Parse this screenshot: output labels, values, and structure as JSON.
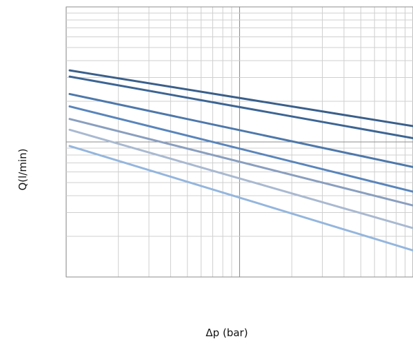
{
  "chart_data": {
    "type": "line",
    "xlabel": "Δp (bar)",
    "ylabel": "Q(l/min)",
    "x_scale": "log",
    "y_scale": "log",
    "grid": true,
    "legend": "none",
    "series": [
      {
        "color": "#3a5f8a",
        "start_y": 0.47,
        "end_y": 0.883
      },
      {
        "color": "#3d6593",
        "start_y": 0.516,
        "end_y": 0.972
      },
      {
        "color": "#4e78aa",
        "start_y": 0.645,
        "end_y": 1.186
      },
      {
        "color": "#5a85bb",
        "start_y": 0.737,
        "end_y": 1.368
      },
      {
        "color": "#8a9fbf",
        "start_y": 0.83,
        "end_y": 1.47
      },
      {
        "color": "#a9b9d1",
        "start_y": 0.91,
        "end_y": 1.638
      },
      {
        "color": "#94b6de",
        "start_y": 1.03,
        "end_y": 1.803
      }
    ]
  }
}
